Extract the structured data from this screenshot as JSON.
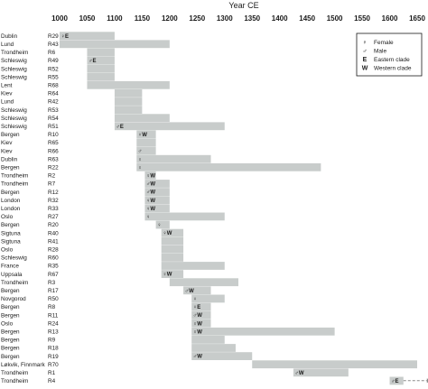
{
  "chart_data": {
    "type": "bar",
    "orientation": "horizontal-range",
    "title": "",
    "xlabel": "Year CE",
    "ylabel": "",
    "xlim": [
      1000,
      1650
    ],
    "x_ticks": [
      1000,
      1050,
      1100,
      1150,
      1200,
      1250,
      1300,
      1350,
      1400,
      1450,
      1500,
      1550,
      1600,
      1650
    ],
    "grid": false,
    "legend_position": "top-right",
    "bar_color": "#c8cccb",
    "legend": [
      {
        "symbol": "♀",
        "label": "Female"
      },
      {
        "symbol": "♂",
        "label": "Male"
      },
      {
        "symbol": "E",
        "label": "Eastern clade"
      },
      {
        "symbol": "W",
        "label": "Western clade"
      }
    ],
    "rows": [
      {
        "site": "Dublin",
        "id": "R29",
        "start": 1000,
        "end": 1100,
        "annot": "♀E"
      },
      {
        "site": "Lund",
        "id": "R43",
        "start": 1000,
        "end": 1200,
        "annot": ""
      },
      {
        "site": "Trondheim",
        "id": "R6",
        "start": 1050,
        "end": 1100,
        "annot": ""
      },
      {
        "site": "Schleswig",
        "id": "R49",
        "start": 1050,
        "end": 1100,
        "annot": "♂E"
      },
      {
        "site": "Schleswig",
        "id": "R52",
        "start": 1050,
        "end": 1100,
        "annot": ""
      },
      {
        "site": "Schleswig",
        "id": "R55",
        "start": 1050,
        "end": 1100,
        "annot": ""
      },
      {
        "site": "Lent",
        "id": "R68",
        "start": 1050,
        "end": 1200,
        "annot": ""
      },
      {
        "site": "Kiev",
        "id": "R64",
        "start": 1100,
        "end": 1150,
        "annot": ""
      },
      {
        "site": "Lund",
        "id": "R42",
        "start": 1100,
        "end": 1150,
        "annot": ""
      },
      {
        "site": "Schleswig",
        "id": "R53",
        "start": 1100,
        "end": 1150,
        "annot": ""
      },
      {
        "site": "Schleswig",
        "id": "R54",
        "start": 1100,
        "end": 1200,
        "annot": ""
      },
      {
        "site": "Schleswig",
        "id": "R51",
        "start": 1100,
        "end": 1300,
        "annot": "♂E"
      },
      {
        "site": "Bergen",
        "id": "R10",
        "start": 1140,
        "end": 1175,
        "annot": "♀W"
      },
      {
        "site": "Kiev",
        "id": "R65",
        "start": 1140,
        "end": 1175,
        "annot": ""
      },
      {
        "site": "Kiev",
        "id": "R66",
        "start": 1140,
        "end": 1175,
        "annot": "♂"
      },
      {
        "site": "Dublin",
        "id": "R63",
        "start": 1140,
        "end": 1275,
        "annot": "♀"
      },
      {
        "site": "Bergen",
        "id": "R22",
        "start": 1140,
        "end": 1475,
        "annot": "♀"
      },
      {
        "site": "Trondheim",
        "id": "R2",
        "start": 1155,
        "end": 1175,
        "annot": "♀W"
      },
      {
        "site": "Trondheim",
        "id": "R7",
        "start": 1155,
        "end": 1200,
        "annot": "♂W"
      },
      {
        "site": "Bergen",
        "id": "R12",
        "start": 1155,
        "end": 1200,
        "annot": "♂W"
      },
      {
        "site": "London",
        "id": "R32",
        "start": 1155,
        "end": 1200,
        "annot": "♀W"
      },
      {
        "site": "London",
        "id": "R33",
        "start": 1155,
        "end": 1200,
        "annot": "♀W"
      },
      {
        "site": "Oslo",
        "id": "R27",
        "start": 1155,
        "end": 1300,
        "annot": "♀"
      },
      {
        "site": "Bergen",
        "id": "R20",
        "start": 1175,
        "end": 1200,
        "annot": "♀"
      },
      {
        "site": "Sigtuna",
        "id": "R40",
        "start": 1185,
        "end": 1225,
        "annot": "♀W"
      },
      {
        "site": "Sigtuna",
        "id": "R41",
        "start": 1185,
        "end": 1225,
        "annot": ""
      },
      {
        "site": "Oslo",
        "id": "R28",
        "start": 1185,
        "end": 1225,
        "annot": ""
      },
      {
        "site": "Schleswig",
        "id": "R60",
        "start": 1185,
        "end": 1225,
        "annot": ""
      },
      {
        "site": "France",
        "id": "R35",
        "start": 1185,
        "end": 1300,
        "annot": ""
      },
      {
        "site": "Uppsala",
        "id": "R67",
        "start": 1185,
        "end": 1225,
        "annot": "♀W"
      },
      {
        "site": "Trondheim",
        "id": "R3",
        "start": 1200,
        "end": 1325,
        "annot": ""
      },
      {
        "site": "Bergen",
        "id": "R17",
        "start": 1225,
        "end": 1275,
        "annot": "♂W"
      },
      {
        "site": "Novgorod",
        "id": "R50",
        "start": 1240,
        "end": 1300,
        "annot": "♀"
      },
      {
        "site": "Bergen",
        "id": "R8",
        "start": 1240,
        "end": 1275,
        "annot": "♀E"
      },
      {
        "site": "Bergen",
        "id": "R11",
        "start": 1240,
        "end": 1275,
        "annot": "♂W"
      },
      {
        "site": "Oslo",
        "id": "R24",
        "start": 1240,
        "end": 1275,
        "annot": "♀W"
      },
      {
        "site": "Bergen",
        "id": "R13",
        "start": 1240,
        "end": 1500,
        "annot": "♀W"
      },
      {
        "site": "Bergen",
        "id": "R9",
        "start": 1240,
        "end": 1300,
        "annot": ""
      },
      {
        "site": "Bergen",
        "id": "R18",
        "start": 1240,
        "end": 1320,
        "annot": ""
      },
      {
        "site": "Bergen",
        "id": "R19",
        "start": 1240,
        "end": 1350,
        "annot": "♂W"
      },
      {
        "site": "Løkvik, Finnmark",
        "id": "R70",
        "start": 1350,
        "end": 1650,
        "annot": ""
      },
      {
        "site": "Trondheim",
        "id": "R1",
        "start": 1425,
        "end": 1525,
        "annot": "♂W"
      },
      {
        "site": "Trondheim",
        "id": "R4",
        "start": 1600,
        "end": 1625,
        "annot": "♂E"
      }
    ]
  }
}
